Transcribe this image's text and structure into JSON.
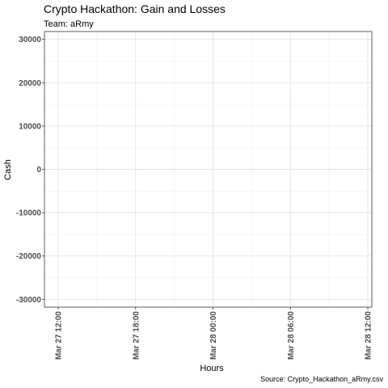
{
  "chart_data": {
    "type": "line",
    "title": "Crypto Hackathon: Gain and Losses",
    "subtitle": "Team: aRmy",
    "xlabel": "Hours",
    "ylabel": "Cash",
    "caption": "Source: Crypto_Hackathon_aRmy.csv",
    "x_ticks": [
      "Mar 27 12:00",
      "Mar 27 18:00",
      "Mar 28 00:00",
      "Mar 28 06:00",
      "Mar 28 12:00"
    ],
    "y_ticks": [
      "30000",
      "20000",
      "10000",
      "0",
      "-10000",
      "-20000",
      "-30000"
    ],
    "ylim": [
      -30000,
      30000
    ],
    "grid": true,
    "series": []
  }
}
